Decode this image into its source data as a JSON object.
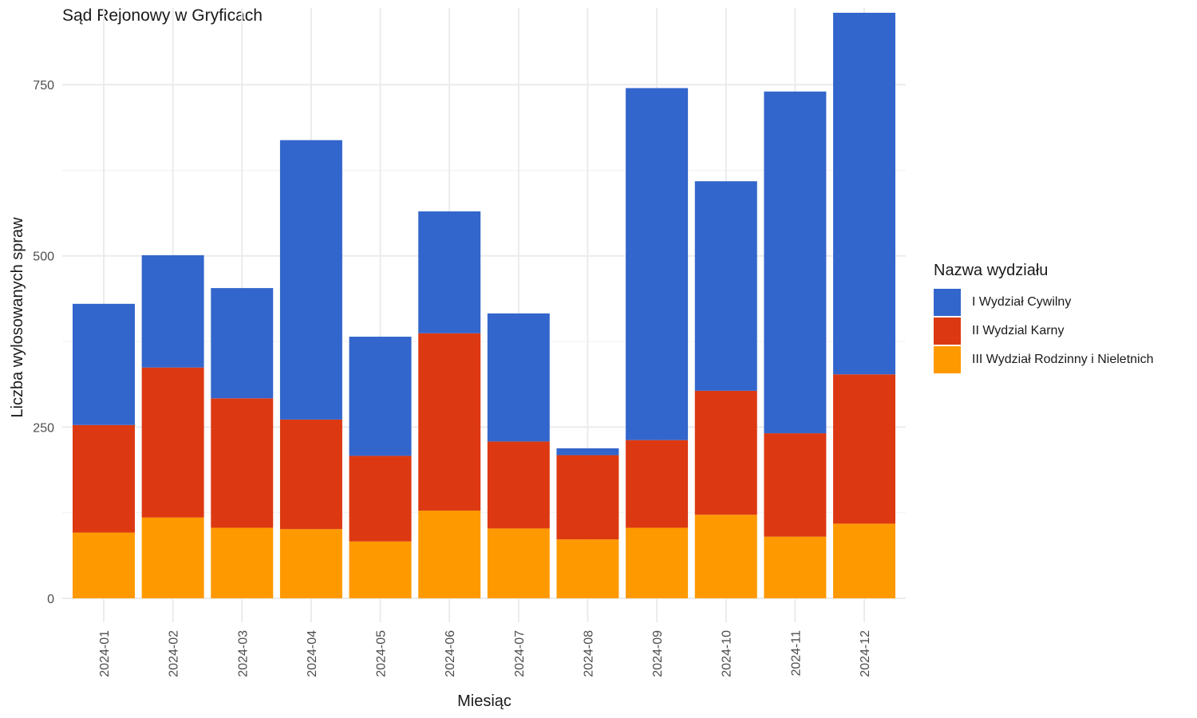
{
  "chart_data": {
    "type": "bar",
    "stacked": true,
    "title": "Sąd Rejonowy w Gryficach",
    "xlabel": "Miesiąc",
    "ylabel": "Liczba wylosowanych spraw",
    "ylim": [
      -35,
      862
    ],
    "yticks": [
      0,
      250,
      500,
      750
    ],
    "grid": true,
    "legend_title": "Nazwa wydziału",
    "legend_position": "right",
    "categories": [
      "2024-01",
      "2024-02",
      "2024-03",
      "2024-04",
      "2024-05",
      "2024-06",
      "2024-07",
      "2024-08",
      "2024-09",
      "2024-10",
      "2024-11",
      "2024-12"
    ],
    "series": [
      {
        "name": "III Wydział Rodzinny i Nieletnich",
        "color": "#FF9900",
        "values": [
          96,
          118,
          103,
          101,
          83,
          128,
          102,
          86,
          103,
          122,
          90,
          109
        ]
      },
      {
        "name": "II Wydzial Karny",
        "color": "#DC3912",
        "values": [
          157,
          219,
          189,
          160,
          125,
          259,
          127,
          123,
          128,
          181,
          151,
          218
        ]
      },
      {
        "name": "I Wydział Cywilny",
        "color": "#3366CC",
        "values": [
          177,
          164,
          161,
          408,
          174,
          178,
          187,
          10,
          514,
          306,
          499,
          528
        ]
      }
    ]
  }
}
